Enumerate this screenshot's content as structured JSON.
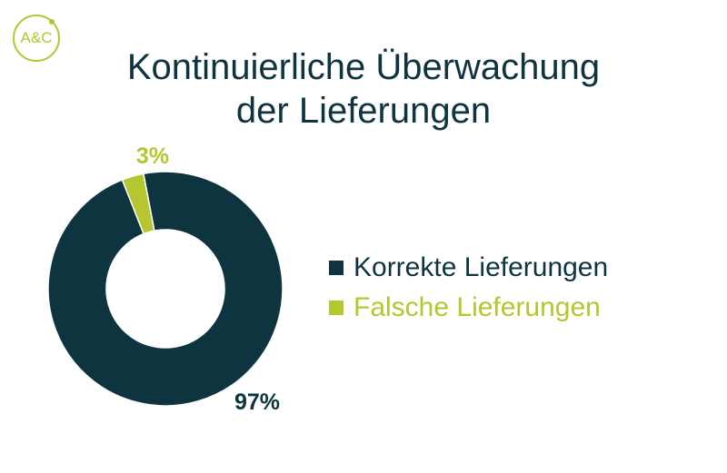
{
  "logo": {
    "text": "A&C"
  },
  "title_lines": [
    "Kontinuierliche Überwachung",
    "der Lieferungen"
  ],
  "colors": {
    "dark": "#0e3440",
    "green": "#b5c631"
  },
  "chart_data": {
    "type": "pie",
    "title": "Kontinuierliche Überwachung der Lieferungen",
    "categories": [
      "Korrekte Lieferungen",
      "Falsche Lieferungen"
    ],
    "values": [
      97,
      3
    ],
    "labels": [
      "97%",
      "3%"
    ],
    "colors": [
      "#0e3440",
      "#b5c631"
    ],
    "donut": true,
    "legend_position": "right"
  }
}
